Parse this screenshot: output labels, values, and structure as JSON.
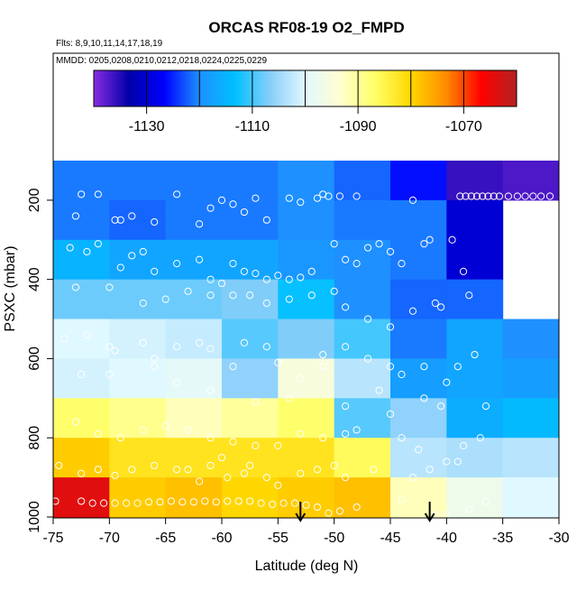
{
  "chart_data": {
    "type": "heatmap",
    "title": "ORCAS RF08-19 O2_FMPD",
    "subtitle_flights": "Flts: 8,9,10,11,14,17,18,19",
    "subtitle_dates": "MMDD: 0205,0208,0210,0212,0218,0224,0225,0229",
    "xlabel": "Latitude (deg N)",
    "ylabel": "PSXC (mbar)",
    "xlim": [
      -75,
      -30
    ],
    "ylim": [
      1000,
      100
    ],
    "x_ticks": [
      -75,
      -70,
      -65,
      -60,
      -55,
      -50,
      -45,
      -40,
      -35,
      -30
    ],
    "y_ticks": [
      200,
      400,
      600,
      800,
      1000
    ],
    "colorbar": {
      "min": -1140,
      "max": -1060,
      "ticks": [
        -1130,
        -1110,
        -1090,
        -1070
      ],
      "palette": [
        "#8a2be2",
        "#0000a8",
        "#0000ff",
        "#1e90ff",
        "#00bfff",
        "#87cefa",
        "#e0f8ff",
        "#ffffd0",
        "#ffff66",
        "#ffd700",
        "#ff8c00",
        "#ff0000",
        "#b22222"
      ]
    },
    "lat_bins": [
      -75,
      -70,
      -65,
      -60,
      -55,
      -50,
      -45,
      -40,
      -35,
      -30
    ],
    "p_bins": [
      100,
      200,
      300,
      400,
      500,
      600,
      700,
      800,
      900,
      1000
    ],
    "cells": [
      [
        -1121,
        -1121,
        -1121,
        -1121,
        -1120,
        -1122,
        -1126,
        -1136,
        -1137
      ],
      [
        -1121,
        -1122,
        -1121,
        -1121,
        -1120,
        -1121,
        -1121,
        -1130,
        null
      ],
      [
        -1115,
        -1117,
        -1117,
        -1117,
        -1119,
        -1120,
        -1121,
        -1130,
        null
      ],
      [
        -1108,
        -1108,
        -1108,
        -1107,
        -1113,
        -1120,
        -1122,
        -1122,
        null
      ],
      [
        -1100,
        -1101,
        -1102,
        -1109,
        -1107,
        -1110,
        -1121,
        -1117,
        -1120
      ],
      [
        -1101,
        -1100,
        -1099,
        -1106,
        -1095,
        -1103,
        -1118,
        -1117,
        -1118
      ],
      [
        -1087,
        -1089,
        -1092,
        -1090,
        -1087,
        -1109,
        -1106,
        -1116,
        -1114
      ],
      [
        -1079,
        -1082,
        -1082,
        -1082,
        -1082,
        -1086,
        -1103,
        -1104,
        -1103
      ],
      [
        -1064,
        -1079,
        -1078,
        -1080,
        -1079,
        -1078,
        -1092,
        -1097,
        -1100
      ]
    ],
    "observations": [
      [
        -72.5,
        185
      ],
      [
        -71,
        185
      ],
      [
        -73,
        240
      ],
      [
        -69.5,
        250
      ],
      [
        -69,
        250
      ],
      [
        -68,
        240
      ],
      [
        -66,
        255
      ],
      [
        -64,
        185
      ],
      [
        -62,
        260
      ],
      [
        -61,
        220
      ],
      [
        -60,
        200
      ],
      [
        -59,
        210
      ],
      [
        -58,
        230
      ],
      [
        -57,
        195
      ],
      [
        -56,
        250
      ],
      [
        -54,
        195
      ],
      [
        -53,
        205
      ],
      [
        -51.5,
        195
      ],
      [
        -51,
        185
      ],
      [
        -50.5,
        190
      ],
      [
        -49.5,
        190
      ],
      [
        -48,
        190
      ],
      [
        -43,
        200
      ],
      [
        -38.8,
        190
      ],
      [
        -38.3,
        190
      ],
      [
        -37.8,
        190
      ],
      [
        -37.3,
        190
      ],
      [
        -36.8,
        190
      ],
      [
        -36.3,
        190
      ],
      [
        -35.8,
        190
      ],
      [
        -35.3,
        190
      ],
      [
        -34.5,
        190
      ],
      [
        -33.7,
        190
      ],
      [
        -33,
        190
      ],
      [
        -32.3,
        190
      ],
      [
        -31.6,
        190
      ],
      [
        -30.8,
        190
      ],
      [
        -73.5,
        320
      ],
      [
        -72,
        330
      ],
      [
        -71,
        310
      ],
      [
        -69,
        370
      ],
      [
        -68,
        340
      ],
      [
        -67,
        330
      ],
      [
        -66,
        380
      ],
      [
        -64,
        360
      ],
      [
        -62,
        350
      ],
      [
        -61,
        400
      ],
      [
        -60,
        410
      ],
      [
        -59,
        360
      ],
      [
        -58,
        380
      ],
      [
        -57,
        385
      ],
      [
        -56,
        400
      ],
      [
        -55,
        390
      ],
      [
        -54,
        400
      ],
      [
        -53,
        395
      ],
      [
        -52,
        380
      ],
      [
        -50,
        310
      ],
      [
        -49,
        350
      ],
      [
        -48,
        360
      ],
      [
        -47,
        320
      ],
      [
        -46,
        310
      ],
      [
        -45,
        330
      ],
      [
        -44,
        360
      ],
      [
        -42,
        310
      ],
      [
        -41.5,
        300
      ],
      [
        -39.5,
        300
      ],
      [
        -38.5,
        380
      ],
      [
        -73,
        420
      ],
      [
        -70,
        420
      ],
      [
        -67,
        460
      ],
      [
        -65,
        450
      ],
      [
        -63,
        430
      ],
      [
        -61,
        440
      ],
      [
        -59,
        440
      ],
      [
        -57.5,
        440
      ],
      [
        -56,
        460
      ],
      [
        -54,
        450
      ],
      [
        -52,
        440
      ],
      [
        -50,
        430
      ],
      [
        -49,
        470
      ],
      [
        -47,
        500
      ],
      [
        -45,
        520
      ],
      [
        -43,
        480
      ],
      [
        -41,
        460
      ],
      [
        -40.5,
        470
      ],
      [
        -38,
        440
      ],
      [
        -74,
        550
      ],
      [
        -72,
        540
      ],
      [
        -70,
        570
      ],
      [
        -69.5,
        580
      ],
      [
        -67,
        560
      ],
      [
        -66,
        600
      ],
      [
        -64,
        570
      ],
      [
        -62,
        560
      ],
      [
        -61,
        575
      ],
      [
        -58,
        560
      ],
      [
        -56,
        570
      ],
      [
        -55,
        610
      ],
      [
        -53,
        650
      ],
      [
        -51,
        590
      ],
      [
        -49,
        570
      ],
      [
        -47,
        600
      ],
      [
        -45,
        620
      ],
      [
        -44,
        640
      ],
      [
        -42,
        620
      ],
      [
        -40,
        660
      ],
      [
        -39,
        620
      ],
      [
        -37.5,
        590
      ],
      [
        -72.5,
        640
      ],
      [
        -70,
        640
      ],
      [
        -66,
        620
      ],
      [
        -64,
        660
      ],
      [
        -61,
        680
      ],
      [
        -59,
        620
      ],
      [
        -57,
        710
      ],
      [
        -54,
        700
      ],
      [
        -51,
        620
      ],
      [
        -49,
        720
      ],
      [
        -46,
        680
      ],
      [
        -45,
        740
      ],
      [
        -42,
        700
      ],
      [
        -40.5,
        720
      ],
      [
        -36.5,
        720
      ],
      [
        -73,
        760
      ],
      [
        -71,
        790
      ],
      [
        -69,
        800
      ],
      [
        -67,
        780
      ],
      [
        -65,
        770
      ],
      [
        -63,
        780
      ],
      [
        -61,
        800
      ],
      [
        -59,
        810
      ],
      [
        -57,
        820
      ],
      [
        -55,
        820
      ],
      [
        -53,
        790
      ],
      [
        -51,
        800
      ],
      [
        -49,
        790
      ],
      [
        -48,
        780
      ],
      [
        -44,
        800
      ],
      [
        -42.5,
        830
      ],
      [
        -40,
        860
      ],
      [
        -38.5,
        820
      ],
      [
        -37,
        800
      ],
      [
        -74.5,
        870
      ],
      [
        -72.5,
        890
      ],
      [
        -71,
        880
      ],
      [
        -69.5,
        895
      ],
      [
        -68,
        880
      ],
      [
        -66,
        870
      ],
      [
        -64,
        880
      ],
      [
        -63,
        880
      ],
      [
        -62,
        910
      ],
      [
        -61,
        870
      ],
      [
        -60,
        850
      ],
      [
        -59.5,
        900
      ],
      [
        -58,
        890
      ],
      [
        -57.5,
        870
      ],
      [
        -56,
        900
      ],
      [
        -55,
        920
      ],
      [
        -53,
        890
      ],
      [
        -51.5,
        880
      ],
      [
        -50,
        870
      ],
      [
        -49,
        900
      ],
      [
        -46.5,
        880
      ],
      [
        -43,
        900
      ],
      [
        -41.5,
        880
      ],
      [
        -39,
        860
      ],
      [
        -74.8,
        960
      ],
      [
        -72.5,
        960
      ],
      [
        -71.5,
        965
      ],
      [
        -70.5,
        965
      ],
      [
        -69.5,
        965
      ],
      [
        -68.5,
        965
      ],
      [
        -67.5,
        965
      ],
      [
        -66.5,
        962
      ],
      [
        -65.5,
        962
      ],
      [
        -64.5,
        960
      ],
      [
        -63.5,
        962
      ],
      [
        -62.5,
        962
      ],
      [
        -61.5,
        960
      ],
      [
        -60.5,
        962
      ],
      [
        -59.5,
        960
      ],
      [
        -58.5,
        960
      ],
      [
        -57.5,
        960
      ],
      [
        -56.5,
        965
      ],
      [
        -55.5,
        968
      ],
      [
        -54.5,
        965
      ],
      [
        -53.5,
        965
      ],
      [
        -52.5,
        970
      ],
      [
        -51.5,
        975
      ],
      [
        -50.5,
        990
      ],
      [
        -49.5,
        985
      ],
      [
        -48,
        975
      ],
      [
        -44,
        955
      ],
      [
        -41,
        995
      ],
      [
        -40,
        995
      ],
      [
        -38,
        980
      ],
      [
        -36.5,
        960
      ]
    ],
    "arrows": [
      -53,
      -41.5
    ]
  }
}
